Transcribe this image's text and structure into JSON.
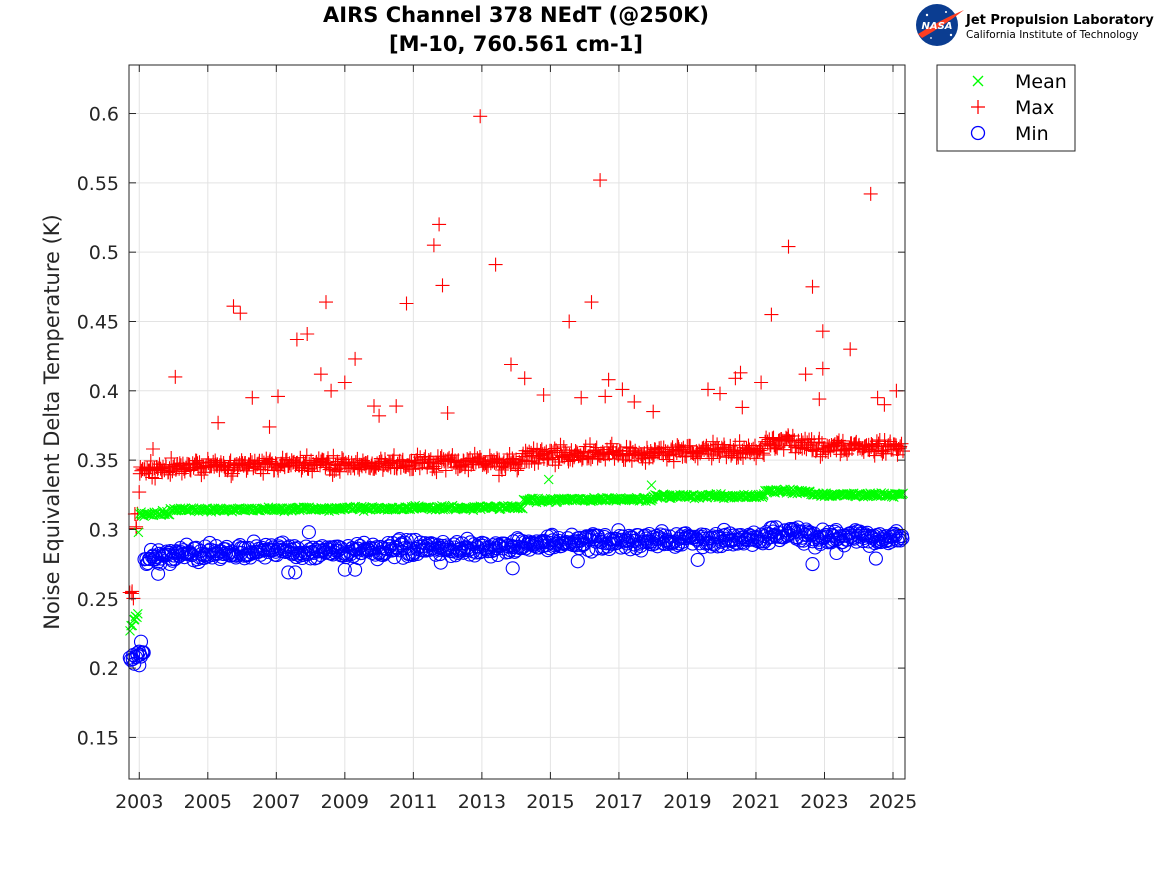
{
  "logo": {
    "name": "Jet Propulsion Laboratory",
    "subtitle": "California Institute of Technology",
    "badge": "NASA"
  },
  "chart_data": {
    "type": "scatter",
    "title": [
      "AIRS Channel 378 NEdT (@250K)",
      "[M-10, 760.561 cm-1]"
    ],
    "xlabel": "",
    "ylabel": "Noise Equivalent Delta Temperature (K)",
    "xlim": [
      2002.7,
      2025.35
    ],
    "ylim": [
      0.12,
      0.635
    ],
    "xticks": [
      2003,
      2005,
      2007,
      2009,
      2011,
      2013,
      2015,
      2017,
      2019,
      2021,
      2023,
      2025
    ],
    "yticks": [
      0.15,
      0.2,
      0.25,
      0.3,
      0.35,
      0.4,
      0.45,
      0.5,
      0.55,
      0.6
    ],
    "grid": true,
    "legend_position": "outside-top-right",
    "series": [
      {
        "name": "Mean",
        "marker": "x",
        "color": "#00ff00",
        "segments": [
          {
            "x": [
              2002.72,
              2002.85
            ],
            "y": [
              0.229,
              0.233
            ],
            "jitter": 0.002
          },
          {
            "x": [
              2002.85,
              2002.97
            ],
            "y": [
              0.235,
              0.24
            ],
            "jitter": 0.002
          },
          {
            "x": [
              2002.97,
              2003.0
            ],
            "y": [
              0.295,
              0.31
            ],
            "jitter": 0.003
          },
          {
            "x": [
              2003.0,
              2003.9
            ],
            "y": [
              0.311,
              0.312
            ],
            "jitter": 0.0012
          },
          {
            "x": [
              2003.9,
              2014.2
            ],
            "y": [
              0.314,
              0.316
            ],
            "jitter": 0.0012
          },
          {
            "x": [
              2014.2,
              2018.0
            ],
            "y": [
              0.321,
              0.322
            ],
            "jitter": 0.0012
          },
          {
            "x": [
              2018.0,
              2021.25
            ],
            "y": [
              0.324,
              0.324
            ],
            "jitter": 0.0012
          },
          {
            "x": [
              2021.25,
              2022.6
            ],
            "y": [
              0.328,
              0.327
            ],
            "jitter": 0.0012
          },
          {
            "x": [
              2022.6,
              2025.3
            ],
            "y": [
              0.325,
              0.325
            ],
            "jitter": 0.0012
          }
        ],
        "outliers": [
          [
            2014.95,
            0.336
          ],
          [
            2017.95,
            0.332
          ]
        ]
      },
      {
        "name": "Max",
        "marker": "+",
        "color": "#ff0000",
        "segments": [
          {
            "x": [
              2002.72,
              2002.85
            ],
            "y": [
              0.25,
              0.255
            ],
            "jitter": 0.004
          },
          {
            "x": [
              2002.85,
              2003.0
            ],
            "y": [
              0.29,
              0.325
            ],
            "jitter": 0.012
          },
          {
            "x": [
              2003.0,
              2003.9
            ],
            "y": [
              0.341,
              0.343
            ],
            "jitter": 0.005
          },
          {
            "x": [
              2003.9,
              2014.2
            ],
            "y": [
              0.345,
              0.349
            ],
            "jitter": 0.005
          },
          {
            "x": [
              2014.2,
              2018.0
            ],
            "y": [
              0.353,
              0.355
            ],
            "jitter": 0.005
          },
          {
            "x": [
              2018.0,
              2021.25
            ],
            "y": [
              0.356,
              0.357
            ],
            "jitter": 0.005
          },
          {
            "x": [
              2021.25,
              2022.6
            ],
            "y": [
              0.363,
              0.362
            ],
            "jitter": 0.005
          },
          {
            "x": [
              2022.6,
              2025.3
            ],
            "y": [
              0.36,
              0.359
            ],
            "jitter": 0.005
          }
        ],
        "outliers": [
          [
            2004.05,
            0.41
          ],
          [
            2005.75,
            0.461
          ],
          [
            2005.95,
            0.456
          ],
          [
            2006.3,
            0.395
          ],
          [
            2007.05,
            0.396
          ],
          [
            2007.6,
            0.437
          ],
          [
            2007.9,
            0.441
          ],
          [
            2008.3,
            0.412
          ],
          [
            2008.45,
            0.464
          ],
          [
            2008.6,
            0.4
          ],
          [
            2009.0,
            0.406
          ],
          [
            2009.3,
            0.423
          ],
          [
            2009.85,
            0.389
          ],
          [
            2010.5,
            0.389
          ],
          [
            2010.8,
            0.463
          ],
          [
            2011.6,
            0.505
          ],
          [
            2011.75,
            0.52
          ],
          [
            2011.85,
            0.476
          ],
          [
            2012.0,
            0.384
          ],
          [
            2012.95,
            0.598
          ],
          [
            2013.4,
            0.491
          ],
          [
            2013.85,
            0.419
          ],
          [
            2014.25,
            0.409
          ],
          [
            2014.8,
            0.397
          ],
          [
            2015.55,
            0.45
          ],
          [
            2015.9,
            0.395
          ],
          [
            2016.2,
            0.464
          ],
          [
            2016.45,
            0.552
          ],
          [
            2016.6,
            0.396
          ],
          [
            2016.7,
            0.408
          ],
          [
            2017.1,
            0.401
          ],
          [
            2017.45,
            0.392
          ],
          [
            2018.0,
            0.385
          ],
          [
            2019.6,
            0.401
          ],
          [
            2019.95,
            0.398
          ],
          [
            2020.4,
            0.409
          ],
          [
            2020.55,
            0.413
          ],
          [
            2020.6,
            0.388
          ],
          [
            2021.15,
            0.406
          ],
          [
            2021.45,
            0.455
          ],
          [
            2021.95,
            0.504
          ],
          [
            2022.45,
            0.412
          ],
          [
            2022.65,
            0.475
          ],
          [
            2022.85,
            0.394
          ],
          [
            2022.95,
            0.443
          ],
          [
            2022.95,
            0.416
          ],
          [
            2023.75,
            0.43
          ],
          [
            2024.35,
            0.542
          ],
          [
            2024.55,
            0.395
          ],
          [
            2024.75,
            0.39
          ],
          [
            2025.1,
            0.4
          ],
          [
            2003.4,
            0.358
          ],
          [
            2005.3,
            0.377
          ],
          [
            2006.8,
            0.374
          ],
          [
            2010.0,
            0.382
          ],
          [
            2013.5,
            0.339
          ]
        ]
      },
      {
        "name": "Min",
        "marker": "o",
        "color": "#0000ff",
        "segments": [
          {
            "x": [
              2002.72,
              2003.15
            ],
            "y": [
              0.206,
              0.212
            ],
            "jitter": 0.004
          },
          {
            "x": [
              2003.15,
              2003.9
            ],
            "y": [
              0.279,
              0.281
            ],
            "jitter": 0.005
          },
          {
            "x": [
              2003.9,
              2014.2
            ],
            "y": [
              0.283,
              0.287
            ],
            "jitter": 0.005
          },
          {
            "x": [
              2014.2,
              2018.0
            ],
            "y": [
              0.29,
              0.292
            ],
            "jitter": 0.005
          },
          {
            "x": [
              2018.0,
              2021.25
            ],
            "y": [
              0.292,
              0.293
            ],
            "jitter": 0.005
          },
          {
            "x": [
              2021.25,
              2022.6
            ],
            "y": [
              0.297,
              0.296
            ],
            "jitter": 0.005
          },
          {
            "x": [
              2022.6,
              2025.3
            ],
            "y": [
              0.294,
              0.294
            ],
            "jitter": 0.005
          }
        ],
        "outliers": [
          [
            2003.55,
            0.268
          ],
          [
            2007.35,
            0.269
          ],
          [
            2007.55,
            0.269
          ],
          [
            2009.0,
            0.271
          ],
          [
            2009.3,
            0.271
          ],
          [
            2013.9,
            0.272
          ],
          [
            2015.8,
            0.277
          ],
          [
            2019.3,
            0.278
          ],
          [
            2022.65,
            0.275
          ],
          [
            2023.35,
            0.283
          ],
          [
            2024.5,
            0.279
          ],
          [
            2007.95,
            0.298
          ],
          [
            2003.0,
            0.202
          ],
          [
            2003.05,
            0.219
          ],
          [
            2016.2,
            0.284
          ],
          [
            2011.8,
            0.276
          ]
        ]
      }
    ]
  }
}
